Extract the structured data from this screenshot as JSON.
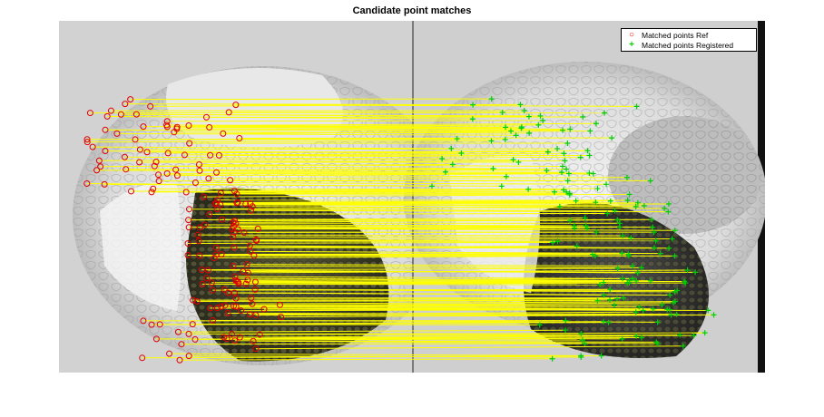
{
  "title": "Candidate point matches",
  "legend": {
    "ref_label": "Matched points Ref",
    "reg_label": "Matched points Registered"
  },
  "colors": {
    "ref_marker": "#e00000",
    "registered_marker": "#00d000",
    "match_line": "#ffff00"
  },
  "icons": {
    "ref_marker": "red-circle-marker",
    "registered_marker": "green-plus-marker"
  }
}
